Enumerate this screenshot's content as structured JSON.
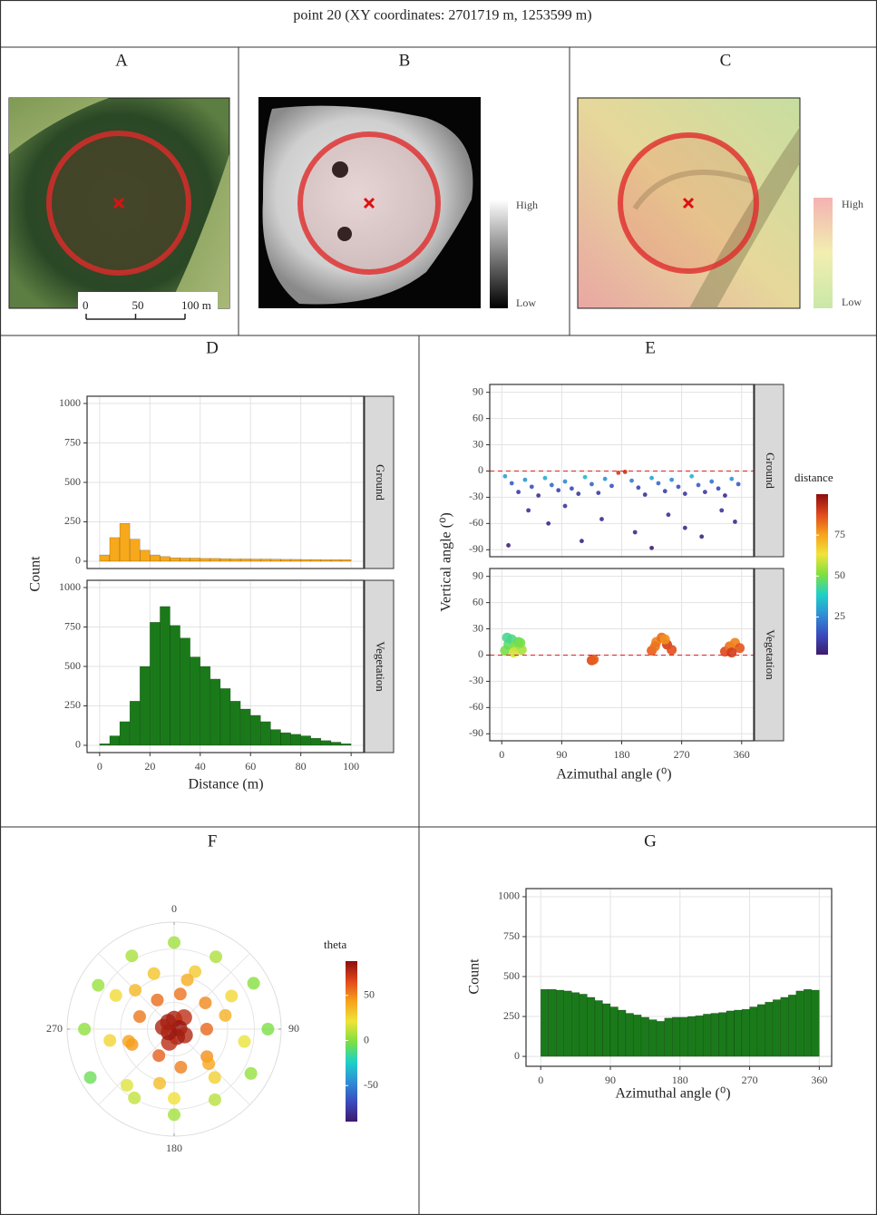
{
  "title": "point 20 (XY coordinates: 2701719 m, 1253599 m)",
  "image_panels": [
    {
      "label": "A",
      "scale_bar": {
        "xlim": [
          0,
          100
        ],
        "ticks": [
          0,
          50,
          {
            "value": 100,
            "label": "100 m"
          }
        ]
      }
    },
    {
      "label": "B",
      "legend": {
        "high": "High",
        "low": "Low"
      }
    },
    {
      "label": "C",
      "legend": {
        "high": "High",
        "low": "Low"
      }
    }
  ],
  "chart_data": [
    {
      "type": "histogram",
      "label": "D",
      "xlabel": "Distance (m)",
      "ylabel": "Count",
      "bins": [
        0,
        4,
        8,
        12,
        16,
        20,
        24,
        28,
        32,
        36,
        40,
        44,
        48,
        52,
        56,
        60,
        64,
        68,
        72,
        76,
        80,
        84,
        88,
        92,
        96,
        100
      ],
      "facets": [
        {
          "name": "Ground",
          "color": "#f7a81b",
          "values": [
            40,
            150,
            240,
            140,
            70,
            40,
            30,
            22,
            20,
            20,
            18,
            18,
            16,
            15,
            15,
            14,
            14,
            13,
            12,
            12,
            11,
            11,
            10,
            10,
            10
          ]
        },
        {
          "name": "Vegetation",
          "color": "#1a7a1a",
          "values": [
            10,
            60,
            150,
            280,
            500,
            780,
            880,
            760,
            680,
            560,
            500,
            420,
            360,
            280,
            230,
            190,
            150,
            100,
            80,
            70,
            60,
            45,
            30,
            20,
            10
          ]
        }
      ],
      "xlim": [
        -5,
        105
      ],
      "ylim": [
        -46,
        1046
      ],
      "xticks": [
        0,
        20,
        40,
        60,
        80,
        100
      ],
      "yticks": [
        0,
        250,
        500,
        750,
        1000
      ],
      "grid": true
    },
    {
      "type": "scatter",
      "label": "E",
      "xlabel": "Azimuthal angle (⁰)",
      "ylabel": "Vertical angle (⁰)",
      "reference_line": 0,
      "facets": [
        {
          "name": "Ground",
          "x": [
            5,
            15,
            25,
            35,
            45,
            55,
            65,
            75,
            85,
            95,
            105,
            115,
            125,
            135,
            145,
            155,
            165,
            175,
            185,
            195,
            205,
            215,
            225,
            235,
            245,
            255,
            265,
            275,
            285,
            295,
            305,
            315,
            325,
            335,
            345,
            355,
            10,
            40,
            70,
            95,
            120,
            150,
            200,
            225,
            250,
            275,
            300,
            330,
            350
          ],
          "y": [
            -6,
            -14,
            -24,
            -10,
            -18,
            -28,
            -8,
            -16,
            -22,
            -12,
            -20,
            -26,
            -7,
            -15,
            -25,
            -9,
            -17,
            -2,
            -1,
            -11,
            -19,
            -27,
            -8,
            -14,
            -23,
            -10,
            -18,
            -26,
            -6,
            -16,
            -24,
            -12,
            -20,
            -28,
            -9,
            -15,
            -85,
            -45,
            -60,
            -40,
            -80,
            -55,
            -70,
            -88,
            -50,
            -65,
            -75,
            -45,
            -58
          ],
          "distance": [
            30,
            18,
            10,
            28,
            15,
            8,
            32,
            20,
            12,
            25,
            14,
            9,
            34,
            19,
            10,
            27,
            16,
            90,
            92,
            24,
            13,
            8,
            30,
            20,
            11,
            26,
            15,
            9,
            33,
            18,
            10,
            22,
            13,
            7,
            28,
            17,
            4,
            8,
            6,
            9,
            5,
            7,
            6,
            3,
            8,
            6,
            5,
            9,
            7
          ]
        },
        {
          "name": "Vegetation",
          "x": [
            5,
            10,
            15,
            20,
            25,
            30,
            8,
            18,
            28,
            135,
            138,
            225,
            232,
            240,
            248,
            255,
            230,
            245,
            335,
            342,
            350,
            357,
            345
          ],
          "y": [
            5,
            12,
            18,
            10,
            15,
            6,
            20,
            3,
            14,
            -6,
            -5,
            5,
            15,
            20,
            12,
            6,
            10,
            18,
            4,
            10,
            14,
            8,
            3
          ],
          "distance": [
            50,
            48,
            45,
            52,
            47,
            55,
            44,
            60,
            50,
            88,
            85,
            85,
            80,
            83,
            90,
            87,
            82,
            78,
            88,
            82,
            80,
            86,
            90
          ]
        }
      ],
      "xlim": [
        -18,
        378
      ],
      "ylim": [
        -98,
        99
      ],
      "xticks": [
        0,
        90,
        180,
        270,
        360
      ],
      "yticks": [
        -90,
        -60,
        -30,
        0,
        30,
        60,
        90
      ],
      "grid": true,
      "colorbar": {
        "title": "distance",
        "lim": [
          2,
          100
        ],
        "ticks": [
          25,
          50,
          75
        ]
      },
      "colormap": [
        "#3d1a6b",
        "#3b4cc0",
        "#2e8fd6",
        "#1fd1c8",
        "#7fe03e",
        "#f0e33a",
        "#f7a21b",
        "#e0481c",
        "#8c0d0d"
      ]
    },
    {
      "type": "polar",
      "label": "F",
      "azimuth": [
        0,
        40,
        80,
        120,
        160,
        200,
        240,
        280,
        320,
        10,
        50,
        90,
        130,
        170,
        210,
        250,
        290,
        330,
        20,
        60,
        100,
        140,
        180,
        220,
        260,
        300,
        340,
        0,
        30,
        60,
        90,
        120,
        150,
        180,
        210,
        240,
        270,
        300,
        330,
        15,
        75,
        135,
        195,
        255,
        315
      ],
      "theta": [
        80,
        75,
        85,
        78,
        82,
        76,
        84,
        79,
        81,
        55,
        50,
        58,
        48,
        52,
        60,
        46,
        54,
        57,
        30,
        25,
        20,
        28,
        22,
        18,
        26,
        24,
        32,
        5,
        8,
        0,
        -2,
        3,
        10,
        6,
        12,
        -5,
        2,
        4,
        7,
        40,
        38,
        42,
        35,
        44,
        36
      ],
      "rlim": [
        90,
        -15
      ],
      "angle_ticks": [
        0,
        90,
        180,
        270
      ],
      "colorbar": {
        "title": "theta",
        "lim": [
          -90,
          88
        ],
        "ticks": [
          -50,
          0,
          50
        ]
      },
      "colormap": [
        "#3d1a6b",
        "#3b4cc0",
        "#2e8fd6",
        "#1fd1c8",
        "#7fe03e",
        "#f0e33a",
        "#f7a21b",
        "#e0481c",
        "#8c0d0d"
      ]
    },
    {
      "type": "histogram",
      "label": "G",
      "xlabel": "Azimuthal angle (⁰)",
      "ylabel": "Count",
      "color": "#1a7a1a",
      "bins": [
        0,
        10,
        20,
        30,
        40,
        50,
        60,
        70,
        80,
        90,
        100,
        110,
        120,
        130,
        140,
        150,
        160,
        170,
        180,
        190,
        200,
        210,
        220,
        230,
        240,
        250,
        260,
        270,
        280,
        290,
        300,
        310,
        320,
        330,
        340,
        350,
        360
      ],
      "values": [
        420,
        420,
        415,
        410,
        400,
        390,
        370,
        350,
        330,
        310,
        290,
        270,
        260,
        245,
        230,
        220,
        240,
        245,
        245,
        250,
        255,
        265,
        270,
        275,
        285,
        290,
        295,
        310,
        325,
        340,
        355,
        370,
        385,
        410,
        420,
        415
      ],
      "xlim": [
        -19,
        376
      ],
      "ylim": [
        -62,
        1051
      ],
      "xticks": [
        0,
        90,
        180,
        270,
        360
      ],
      "yticks": [
        0,
        250,
        500,
        750,
        1000
      ],
      "grid": true
    }
  ]
}
